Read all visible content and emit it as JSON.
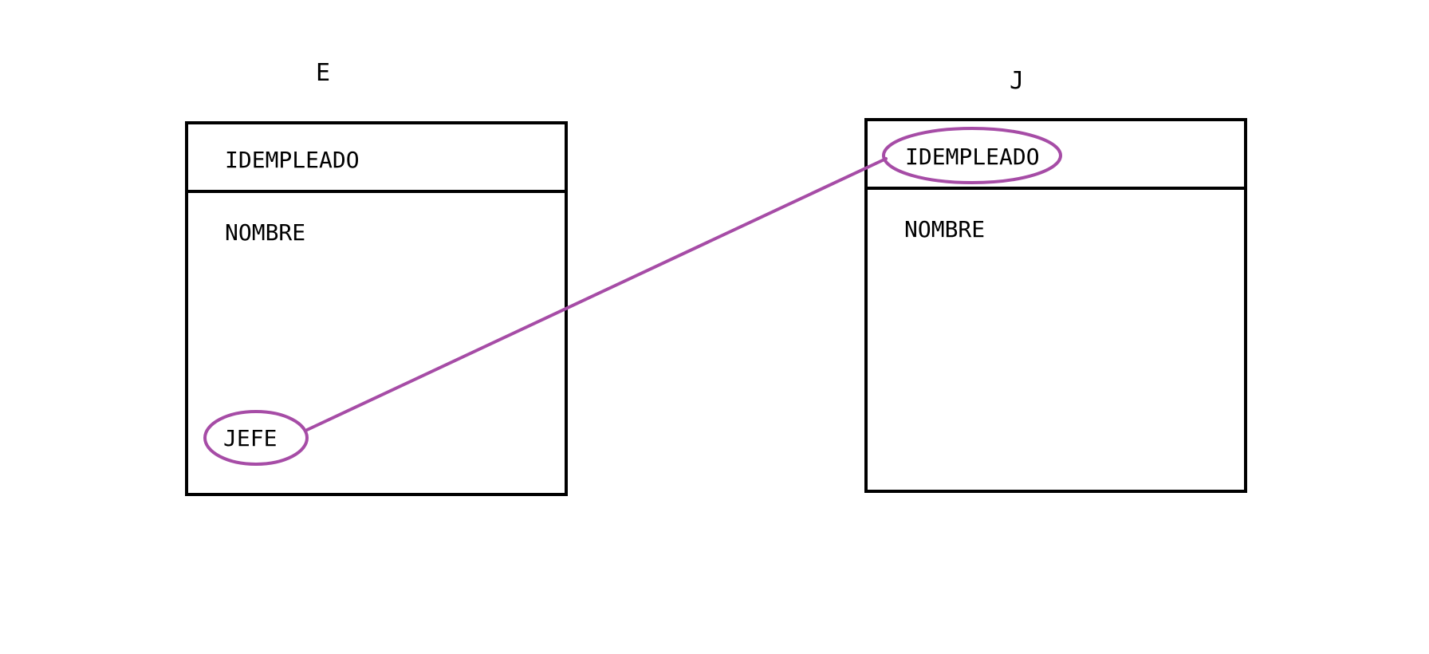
{
  "entities": [
    {
      "title": "E",
      "header_field": "IDEMPLEADO",
      "fields": [
        "NOMBRE",
        "JEFE"
      ]
    },
    {
      "title": "J",
      "header_field": "IDEMPLEADO",
      "fields": [
        "NOMBRE"
      ]
    }
  ],
  "relation": {
    "from": "JEFE",
    "to": "IDEMPLEADO",
    "color": "#a64ca6"
  },
  "colors": {
    "stroke": "#000000",
    "highlight": "#a64ca6",
    "background": "#ffffff"
  }
}
